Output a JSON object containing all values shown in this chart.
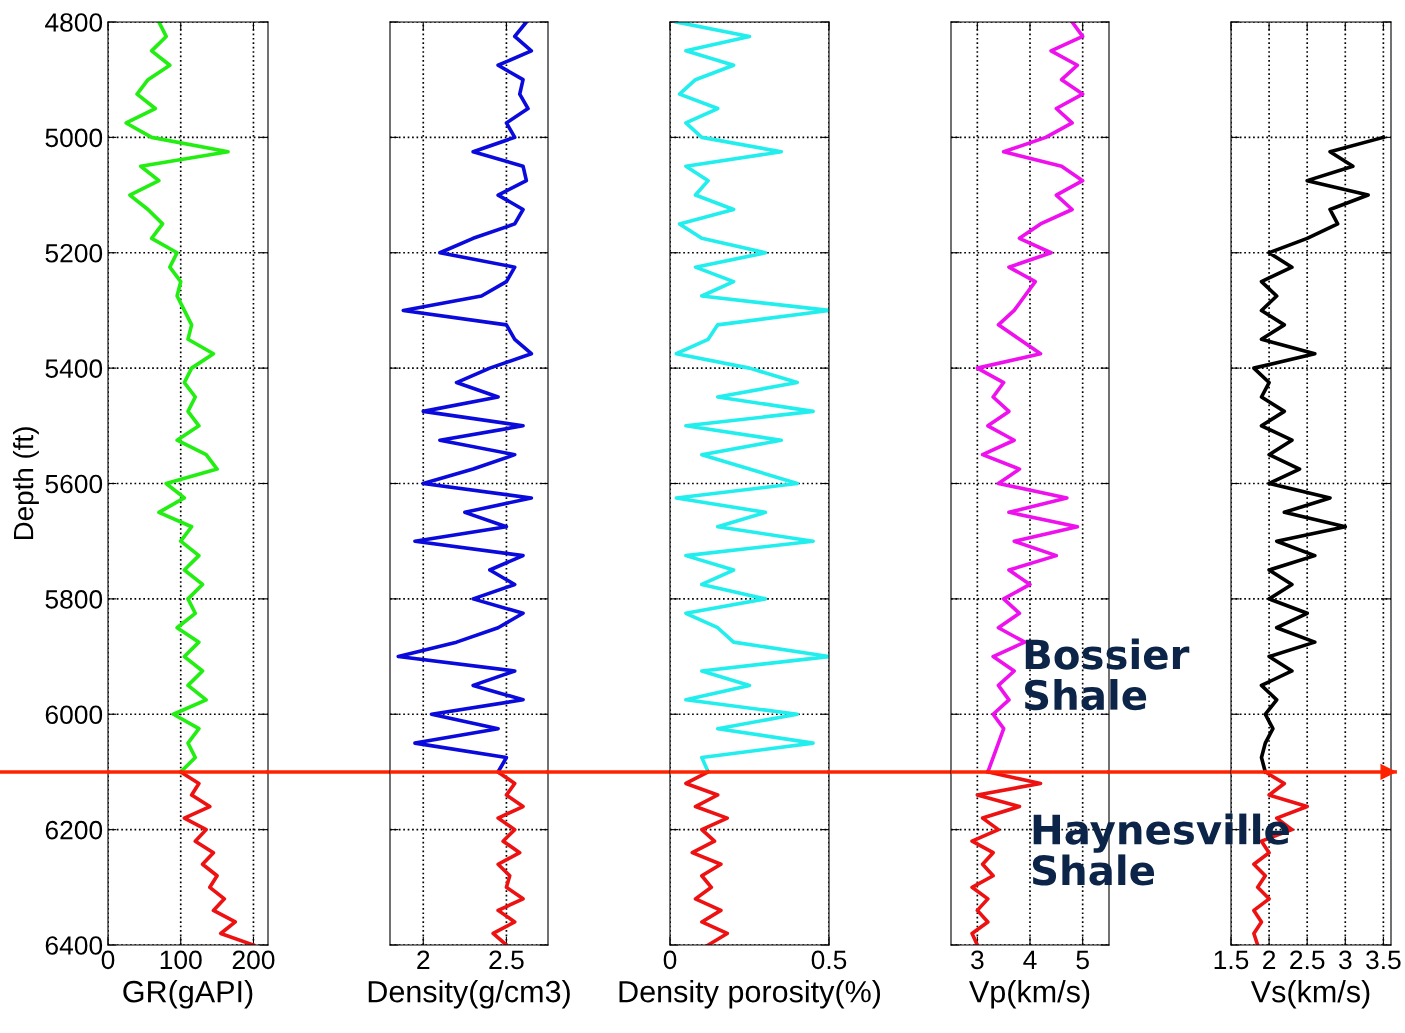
{
  "chart_data": [
    {
      "type": "line",
      "xlabel": "GR(gAPI)",
      "ylabel": "Depth (ft)",
      "xlim": [
        0,
        220
      ],
      "xticks": [
        0,
        100,
        200
      ],
      "ylim": [
        6400,
        4800
      ],
      "yticks": [
        4800,
        5000,
        5200,
        5400,
        5600,
        5800,
        6000,
        6200,
        6400
      ],
      "grid": true,
      "ref_lines": [
        {
          "axis": "y",
          "value": 6100,
          "color": "#ff2200"
        }
      ],
      "series": [
        {
          "color": "#22ee11",
          "x": [
            70,
            80,
            60,
            85,
            55,
            40,
            65,
            25,
            60,
            165,
            45,
            70,
            30,
            55,
            75,
            60,
            95,
            85,
            100,
            95,
            105,
            115,
            110,
            145,
            115,
            105,
            120,
            110,
            125,
            95,
            135,
            150,
            80,
            105,
            70,
            115,
            100,
            125,
            105,
            130,
            110,
            120,
            95,
            125,
            105,
            130,
            110,
            135,
            90,
            125,
            110,
            120,
            100
          ],
          "values": [
            4800,
            4825,
            4850,
            4875,
            4900,
            4925,
            4950,
            4975,
            5000,
            5025,
            5050,
            5075,
            5100,
            5125,
            5150,
            5175,
            5200,
            5225,
            5250,
            5275,
            5300,
            5325,
            5350,
            5375,
            5400,
            5425,
            5450,
            5475,
            5500,
            5525,
            5550,
            5575,
            5600,
            5625,
            5650,
            5675,
            5700,
            5725,
            5750,
            5775,
            5800,
            5825,
            5850,
            5875,
            5900,
            5925,
            5950,
            5975,
            6000,
            6025,
            6050,
            6075,
            6100
          ]
        },
        {
          "color": "#ee1111",
          "x": [
            100,
            125,
            115,
            140,
            105,
            135,
            120,
            145,
            130,
            150,
            140,
            160,
            145,
            175,
            155,
            200
          ],
          "values": [
            6100,
            6120,
            6140,
            6160,
            6180,
            6200,
            6220,
            6240,
            6260,
            6280,
            6300,
            6320,
            6340,
            6360,
            6380,
            6400
          ]
        }
      ]
    },
    {
      "type": "line",
      "xlabel": "Density(g/cm3)",
      "xlim": [
        1.8,
        2.75
      ],
      "xticks": [
        2,
        2.5
      ],
      "ylim": [
        6400,
        4800
      ],
      "yticks": [
        4800,
        5000,
        5200,
        5400,
        5600,
        5800,
        6000,
        6200,
        6400
      ],
      "grid": true,
      "tick_labels": "x",
      "ref_lines": [
        {
          "axis": "y",
          "value": 6100,
          "color": "#ff2200"
        }
      ],
      "series": [
        {
          "color": "#0a0adc",
          "x": [
            2.62,
            2.55,
            2.65,
            2.45,
            2.6,
            2.58,
            2.63,
            2.5,
            2.55,
            2.3,
            2.6,
            2.62,
            2.45,
            2.6,
            2.55,
            2.3,
            2.1,
            2.55,
            2.5,
            2.35,
            1.88,
            2.5,
            2.55,
            2.65,
            2.4,
            2.2,
            2.45,
            2.0,
            2.6,
            2.1,
            2.55,
            2.3,
            2.0,
            2.65,
            2.25,
            2.5,
            1.95,
            2.6,
            2.4,
            2.55,
            2.3,
            2.6,
            2.45,
            2.2,
            1.85,
            2.55,
            2.3,
            2.6,
            2.05,
            2.45,
            1.95,
            2.5,
            2.45
          ],
          "values": [
            4800,
            4825,
            4850,
            4875,
            4900,
            4925,
            4950,
            4975,
            5000,
            5025,
            5050,
            5075,
            5100,
            5125,
            5150,
            5175,
            5200,
            5225,
            5250,
            5275,
            5300,
            5325,
            5350,
            5375,
            5400,
            5425,
            5450,
            5475,
            5500,
            5525,
            5550,
            5575,
            5600,
            5625,
            5650,
            5675,
            5700,
            5725,
            5750,
            5775,
            5800,
            5825,
            5850,
            5875,
            5900,
            5925,
            5950,
            5975,
            6000,
            6025,
            6050,
            6075,
            6100
          ]
        },
        {
          "color": "#ee1111",
          "x": [
            2.45,
            2.55,
            2.5,
            2.6,
            2.45,
            2.55,
            2.48,
            2.58,
            2.45,
            2.52,
            2.5,
            2.6,
            2.45,
            2.55,
            2.42,
            2.5
          ],
          "values": [
            6100,
            6120,
            6140,
            6160,
            6180,
            6200,
            6220,
            6240,
            6260,
            6280,
            6300,
            6320,
            6340,
            6360,
            6380,
            6400
          ]
        }
      ]
    },
    {
      "type": "line",
      "xlabel": "Density porosity(%)",
      "xlim": [
        0,
        0.5
      ],
      "xticks": [
        0,
        0.5
      ],
      "ylim": [
        6400,
        4800
      ],
      "yticks": [
        4800,
        5000,
        5200,
        5400,
        5600,
        5800,
        6000,
        6200,
        6400
      ],
      "grid": true,
      "tick_labels": "x",
      "ref_lines": [
        {
          "axis": "y",
          "value": 6100,
          "color": "#ff2200"
        }
      ],
      "series": [
        {
          "color": "#22eeee",
          "x": [
            0.02,
            0.25,
            0.05,
            0.2,
            0.08,
            0.03,
            0.15,
            0.05,
            0.1,
            0.35,
            0.05,
            0.12,
            0.08,
            0.2,
            0.03,
            0.1,
            0.3,
            0.08,
            0.2,
            0.1,
            0.5,
            0.15,
            0.12,
            0.02,
            0.25,
            0.4,
            0.15,
            0.45,
            0.05,
            0.35,
            0.1,
            0.25,
            0.4,
            0.02,
            0.3,
            0.15,
            0.45,
            0.05,
            0.2,
            0.1,
            0.3,
            0.05,
            0.15,
            0.2,
            0.5,
            0.1,
            0.25,
            0.05,
            0.4,
            0.15,
            0.45,
            0.1,
            0.12
          ],
          "values": [
            4800,
            4825,
            4850,
            4875,
            4900,
            4925,
            4950,
            4975,
            5000,
            5025,
            5050,
            5075,
            5100,
            5125,
            5150,
            5175,
            5200,
            5225,
            5250,
            5275,
            5300,
            5325,
            5350,
            5375,
            5400,
            5425,
            5450,
            5475,
            5500,
            5525,
            5550,
            5575,
            5600,
            5625,
            5650,
            5675,
            5700,
            5725,
            5750,
            5775,
            5800,
            5825,
            5850,
            5875,
            5900,
            5925,
            5950,
            5975,
            6000,
            6025,
            6050,
            6075,
            6100
          ]
        },
        {
          "color": "#ee1111",
          "x": [
            0.12,
            0.05,
            0.15,
            0.08,
            0.18,
            0.1,
            0.14,
            0.07,
            0.16,
            0.1,
            0.13,
            0.08,
            0.16,
            0.1,
            0.18,
            0.12
          ],
          "values": [
            6100,
            6120,
            6140,
            6160,
            6180,
            6200,
            6220,
            6240,
            6260,
            6280,
            6300,
            6320,
            6340,
            6360,
            6380,
            6400
          ]
        }
      ]
    },
    {
      "type": "line",
      "xlabel": "Vp(km/s)",
      "xlim": [
        2.5,
        5.5
      ],
      "xticks": [
        3,
        4,
        5
      ],
      "ylim": [
        6400,
        4800
      ],
      "yticks": [
        4800,
        5000,
        5200,
        5400,
        5600,
        5800,
        6000,
        6200,
        6400
      ],
      "grid": true,
      "tick_labels": "x",
      "ref_lines": [
        {
          "axis": "y",
          "value": 6100,
          "color": "#ff2200"
        }
      ],
      "annotations": [
        "Bossier\nShale",
        "Haynesville\nShale"
      ],
      "series": [
        {
          "color": "#ee11ee",
          "x": [
            4.8,
            5.0,
            4.4,
            4.9,
            4.6,
            5.0,
            4.5,
            4.8,
            4.3,
            3.5,
            4.6,
            5.0,
            4.5,
            4.8,
            4.2,
            3.8,
            4.4,
            3.6,
            4.1,
            3.9,
            3.7,
            3.4,
            3.8,
            4.2,
            3.0,
            3.5,
            3.3,
            3.6,
            3.2,
            3.7,
            3.1,
            3.8,
            3.4,
            4.7,
            3.6,
            4.9,
            3.7,
            4.5,
            3.6,
            4.0,
            3.5,
            3.8,
            3.4,
            3.9,
            3.3,
            3.7,
            3.4,
            3.6,
            3.3,
            3.5,
            3.4,
            3.3,
            3.2
          ],
          "values": [
            4800,
            4825,
            4850,
            4875,
            4900,
            4925,
            4950,
            4975,
            5000,
            5025,
            5050,
            5075,
            5100,
            5125,
            5150,
            5175,
            5200,
            5225,
            5250,
            5275,
            5300,
            5325,
            5350,
            5375,
            5400,
            5425,
            5450,
            5475,
            5500,
            5525,
            5550,
            5575,
            5600,
            5625,
            5650,
            5675,
            5700,
            5725,
            5750,
            5775,
            5800,
            5825,
            5850,
            5875,
            5900,
            5925,
            5950,
            5975,
            6000,
            6025,
            6050,
            6075,
            6100
          ]
        },
        {
          "color": "#ee1111",
          "x": [
            3.2,
            4.2,
            3.0,
            3.8,
            3.1,
            3.4,
            2.9,
            3.3,
            3.1,
            3.3,
            2.9,
            3.2,
            3.0,
            3.2,
            2.9,
            3.0
          ],
          "values": [
            6100,
            6120,
            6140,
            6160,
            6180,
            6200,
            6220,
            6240,
            6260,
            6280,
            6300,
            6320,
            6340,
            6360,
            6380,
            6400
          ]
        }
      ]
    },
    {
      "type": "line",
      "xlabel": "Vs(km/s)",
      "xlim": [
        1.5,
        3.6
      ],
      "xticks": [
        1.5,
        2,
        2.5,
        3,
        3.5
      ],
      "ylim": [
        6400,
        4800
      ],
      "yticks": [
        4800,
        5000,
        5200,
        5400,
        5600,
        5800,
        6000,
        6200,
        6400
      ],
      "grid": true,
      "tick_labels": "x",
      "ref_lines": [
        {
          "axis": "y",
          "value": 6100,
          "color": "#ff2200"
        }
      ],
      "series": [
        {
          "color": "#000000",
          "x": [
            3.5,
            2.8,
            3.1,
            2.5,
            3.3,
            2.8,
            2.9,
            2.5,
            2.0,
            2.3,
            1.9,
            2.1,
            1.9,
            2.2,
            1.9,
            2.6,
            1.8,
            2.0,
            1.9,
            2.2,
            1.9,
            2.3,
            2.0,
            2.4,
            2.0,
            2.8,
            2.2,
            3.0,
            2.1,
            2.6,
            2.0,
            2.3,
            2.0,
            2.5,
            2.1,
            2.6,
            2.0,
            2.3,
            1.9,
            2.1,
            1.95,
            2.05,
            1.95,
            1.9,
            1.95
          ],
          "values": [
            5000,
            5025,
            5050,
            5075,
            5100,
            5125,
            5150,
            5175,
            5200,
            5225,
            5250,
            5275,
            5300,
            5325,
            5350,
            5375,
            5400,
            5425,
            5450,
            5475,
            5500,
            5525,
            5550,
            5575,
            5600,
            5625,
            5650,
            5675,
            5700,
            5725,
            5750,
            5775,
            5800,
            5825,
            5850,
            5875,
            5900,
            5925,
            5950,
            5975,
            6000,
            6025,
            6050,
            6075,
            6100
          ]
        },
        {
          "color": "#ee1111",
          "x": [
            1.95,
            2.2,
            2.0,
            2.5,
            2.1,
            2.3,
            1.9,
            2.0,
            1.8,
            1.95,
            1.85,
            2.0,
            1.8,
            1.9,
            1.8,
            1.85
          ],
          "values": [
            6100,
            6120,
            6140,
            6160,
            6180,
            6200,
            6220,
            6240,
            6260,
            6280,
            6300,
            6320,
            6340,
            6360,
            6380,
            6400
          ]
        }
      ]
    }
  ]
}
